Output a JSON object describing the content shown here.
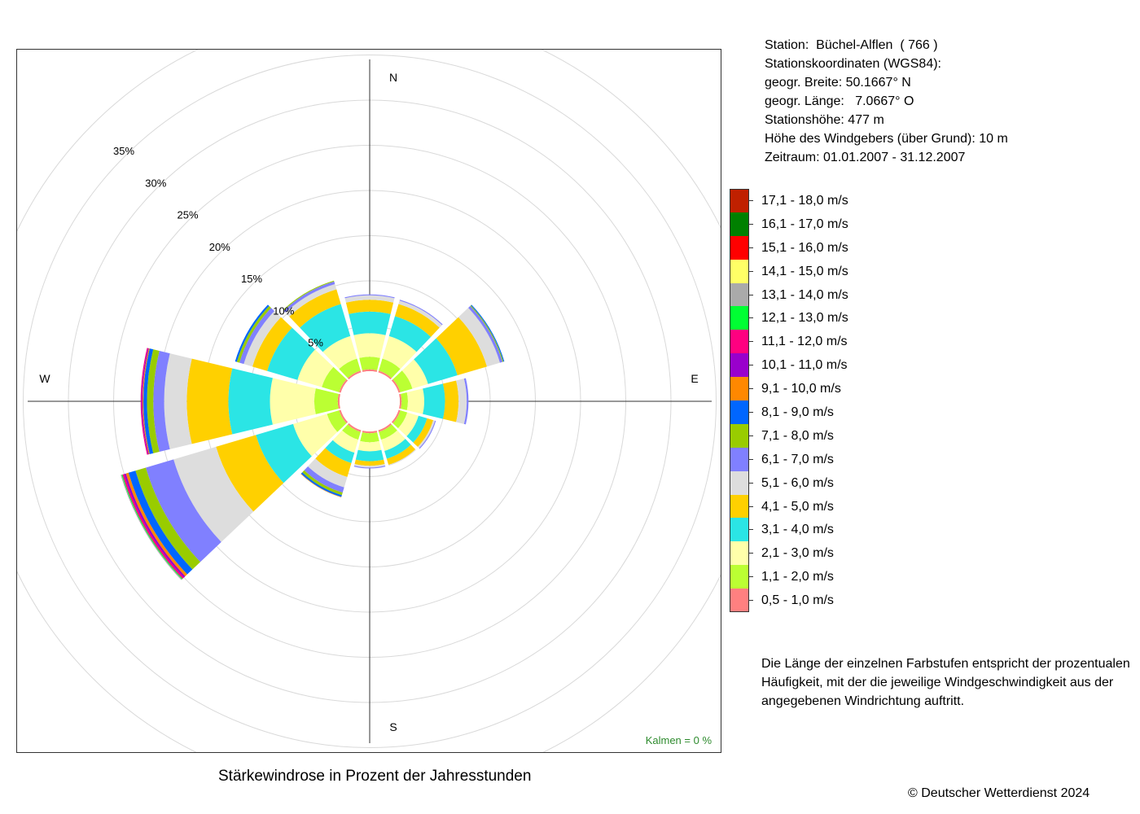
{
  "station": {
    "line1": "Station:  Büchel-Alflen  ( 766 )",
    "line2": "Stationskoordinaten (WGS84):",
    "line3": "geogr. Breite: 50.1667° N",
    "line4": "geogr. Länge:   7.0667° O",
    "line5": "Stationshöhe: 477 m",
    "line6": "Höhe des Windgebers (über Grund): 10 m",
    "line7": "Zeitraum: 01.01.2007 - 31.12.2007"
  },
  "calm_label": "Kalmen  =  0 %",
  "caption": "Stärkewindrose in Prozent der Jahresstunden",
  "note": "Die Länge der einzelnen Farbstufen entspricht der prozentualen Häufigkeit, mit der die jeweilige Windgeschwindigkeit aus der angegebenen Windrichtung auftritt.",
  "copyright": "© Deutscher Wetterdienst  2024",
  "chart_data": {
    "type": "wind-rose",
    "title": "Stärkewindrose in Prozent der Jahresstunden",
    "directions": [
      0,
      30,
      60,
      90,
      120,
      150,
      180,
      210,
      240,
      270,
      300,
      330
    ],
    "cardinal_labels": [
      "N",
      "E",
      "S",
      "W"
    ],
    "radial_ticks": [
      "5%",
      "10%",
      "15%",
      "20%",
      "25%",
      "30%",
      "35%"
    ],
    "radial_range": [
      0,
      35
    ],
    "grid": true,
    "speed_classes": [
      {
        "label": "0,5 - 1,0 m/s",
        "color": "#ff8080"
      },
      {
        "label": "1,1 - 2,0 m/s",
        "color": "#bbff33"
      },
      {
        "label": "2,1 - 3,0 m/s",
        "color": "#ffffaa"
      },
      {
        "label": "3,1 - 4,0 m/s",
        "color": "#2be5e5"
      },
      {
        "label": "4,1 - 5,0 m/s",
        "color": "#ffd000"
      },
      {
        "label": "5,1 - 6,0 m/s",
        "color": "#dddddd"
      },
      {
        "label": "6,1 - 7,0 m/s",
        "color": "#8080ff"
      },
      {
        "label": "7,1 - 8,0 m/s",
        "color": "#99cc00"
      },
      {
        "label": "8,1 - 9,0 m/s",
        "color": "#0066ff"
      },
      {
        "label": "9,1 - 10,0 m/s",
        "color": "#ff8800"
      },
      {
        "label": "10,1 - 11,0 m/s",
        "color": "#9900cc"
      },
      {
        "label": "11,1 - 12,0 m/s",
        "color": "#ff0080"
      },
      {
        "label": "12,1 - 13,0 m/s",
        "color": "#00ff33"
      },
      {
        "label": "13,1 - 14,0 m/s",
        "color": "#aaaaaa"
      },
      {
        "label": "14,1 - 15,0 m/s",
        "color": "#ffff66"
      },
      {
        "label": "15,1 - 16,0 m/s",
        "color": "#ff0000"
      },
      {
        "label": "16,1 - 17,0 m/s",
        "color": "#008000"
      },
      {
        "label": "17,1 - 18,0 m/s",
        "color": "#c02000"
      }
    ],
    "cumulative_percent": [
      {
        "direction": 0,
        "bounds": [
          0.2,
          1.6,
          4.2,
          6.6,
          7.9,
          8.4,
          8.5
        ]
      },
      {
        "direction": 30,
        "bounds": [
          0.2,
          1.6,
          4.2,
          6.5,
          7.9,
          8.3,
          8.4
        ]
      },
      {
        "direction": 60,
        "bounds": [
          0.2,
          1.6,
          3.4,
          6.8,
          10.2,
          11.7,
          12.0,
          12.1,
          12.2
        ]
      },
      {
        "direction": 90,
        "bounds": [
          0.2,
          0.9,
          2.7,
          5.0,
          6.5,
          7.4,
          7.6
        ]
      },
      {
        "direction": 120,
        "bounds": [
          0.2,
          1.0,
          2.3,
          3.3,
          4.0,
          4.2,
          4.3
        ]
      },
      {
        "direction": 150,
        "bounds": [
          0.2,
          1.1,
          2.4,
          3.3,
          4.0,
          4.1
        ]
      },
      {
        "direction": 180,
        "bounds": [
          0.2,
          1.2,
          2.2,
          3.3,
          3.8,
          4.0,
          4.1
        ]
      },
      {
        "direction": 210,
        "bounds": [
          0.2,
          1.1,
          2.6,
          3.8,
          5.4,
          6.6,
          7.2,
          7.5,
          7.7,
          7.75
        ]
      },
      {
        "direction": 240,
        "bounds": [
          0.2,
          1.6,
          5.5,
          9.8,
          14.4,
          19.3,
          22.5,
          23.7,
          24.5,
          24.8,
          25.0,
          25.2,
          25.3,
          25.4
        ]
      },
      {
        "direction": 270,
        "bounds": [
          0.2,
          2.8,
          7.7,
          12.3,
          16.9,
          19.4,
          20.6,
          21.3,
          21.7,
          21.8,
          21.9,
          22.0
        ]
      },
      {
        "direction": 300,
        "bounds": [
          0.2,
          2.2,
          5.0,
          8.5,
          10.2,
          11.2,
          11.7,
          12.0,
          12.2
        ]
      },
      {
        "direction": 330,
        "bounds": [
          0.2,
          1.6,
          4.2,
          7.9,
          9.6,
          10.2,
          10.5,
          10.6
        ]
      }
    ]
  }
}
